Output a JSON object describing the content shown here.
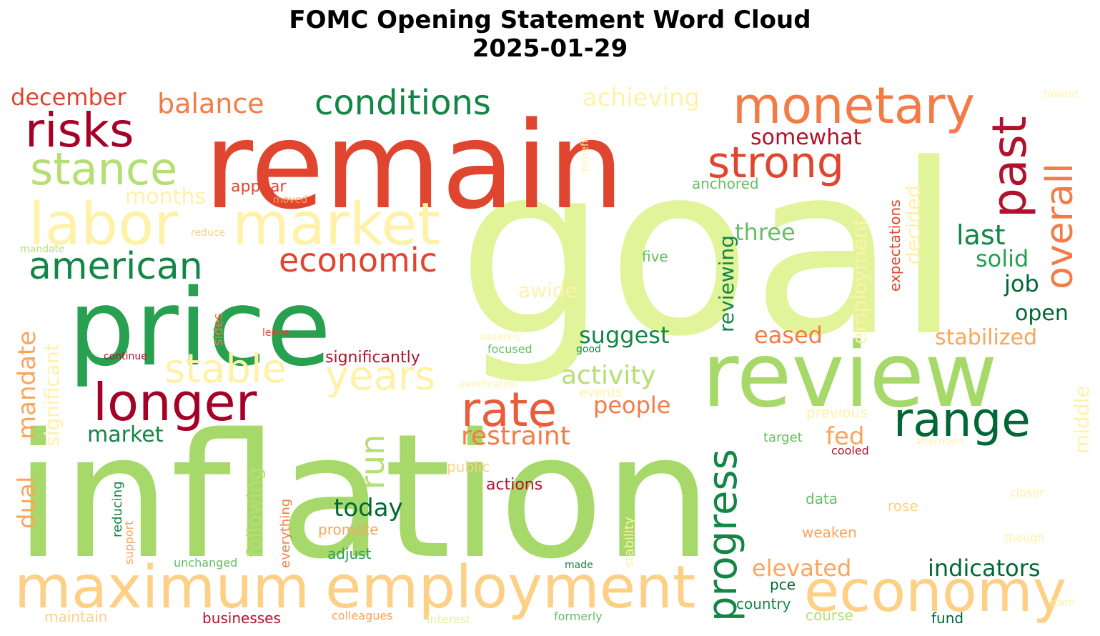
{
  "figure": {
    "title_line1": "FOMC Opening Statement Word Cloud",
    "title_line2": "2025-01-29"
  },
  "palette": {
    "dark_red": "#a50026",
    "crimson": "#b2112b",
    "red": "#e0452f",
    "orange_red": "#ea5c3a",
    "orange": "#f47b45",
    "light_orange": "#fba45c",
    "peach": "#fdd085",
    "pale_yellow": "#fff2a8",
    "pale_lime": "#e1f49a",
    "lime": "#b4df72",
    "light_green": "#a7d96a",
    "green": "#66bd63",
    "mid_green": "#27a050",
    "dark_green": "#138545",
    "deep_green": "#006837"
  },
  "words": [
    {
      "text": "goal",
      "color": "#e1f49a",
      "size": 330,
      "rotate": 0
    },
    {
      "text": "inflation",
      "color": "#a7d96a",
      "size": 240,
      "rotate": 0
    },
    {
      "text": "remain",
      "color": "#e0452f",
      "size": 168,
      "rotate": 0
    },
    {
      "text": "price",
      "color": "#27a050",
      "size": 148,
      "rotate": 0
    },
    {
      "text": "review",
      "color": "#a7d96a",
      "size": 125,
      "rotate": 0
    },
    {
      "text": "economy",
      "color": "#fdd085",
      "size": 80,
      "rotate": 0
    },
    {
      "text": "maximum",
      "color": "#fdd085",
      "size": 82,
      "rotate": 0
    },
    {
      "text": "employment",
      "color": "#fdd085",
      "size": 82,
      "rotate": 0
    },
    {
      "text": "labor",
      "color": "#fff2a8",
      "size": 82,
      "rotate": 0
    },
    {
      "text": "market",
      "color": "#fff2a8",
      "size": 82,
      "rotate": 0
    },
    {
      "text": "monetary",
      "color": "#f47b45",
      "size": 70,
      "rotate": 0
    },
    {
      "text": "risks",
      "color": "#a50026",
      "size": 66,
      "rotate": 0
    },
    {
      "text": "stance",
      "color": "#b4df72",
      "size": 62,
      "rotate": 0
    },
    {
      "text": "longer",
      "color": "#a50026",
      "size": 72,
      "rotate": 0
    },
    {
      "text": "strong",
      "color": "#e0452f",
      "size": 60,
      "rotate": 0
    },
    {
      "text": "conditions",
      "color": "#138545",
      "size": 48,
      "rotate": 0
    },
    {
      "text": "american",
      "color": "#138545",
      "size": 52,
      "rotate": 0
    },
    {
      "text": "rate",
      "color": "#ea5c3a",
      "size": 66,
      "rotate": 0
    },
    {
      "text": "range",
      "color": "#006837",
      "size": 66,
      "rotate": 0
    },
    {
      "text": "past",
      "color": "#b2112b",
      "size": 66,
      "rotate": -90
    },
    {
      "text": "overall",
      "color": "#f47b45",
      "size": 52,
      "rotate": -90
    },
    {
      "text": "progress",
      "color": "#138545",
      "size": 56,
      "rotate": -90
    },
    {
      "text": "stable",
      "color": "#fff2a8",
      "size": 56,
      "rotate": 0
    },
    {
      "text": "years",
      "color": "#fff2a8",
      "size": 56,
      "rotate": 0
    },
    {
      "text": "economic",
      "color": "#e0452f",
      "size": 46,
      "rotate": 0
    },
    {
      "text": "balance",
      "color": "#f47b45",
      "size": 38,
      "rotate": 0
    },
    {
      "text": "december",
      "color": "#e0452f",
      "size": 32,
      "rotate": 0
    },
    {
      "text": "achieving",
      "color": "#fff2a8",
      "size": 34,
      "rotate": 0
    },
    {
      "text": "somewhat",
      "color": "#b2112b",
      "size": 30,
      "rotate": 0
    },
    {
      "text": "months",
      "color": "#fff2a8",
      "size": 30,
      "rotate": 0
    },
    {
      "text": "appear",
      "color": "#e0452f",
      "size": 22,
      "rotate": 0
    },
    {
      "text": "anchored",
      "color": "#66bd63",
      "size": 20,
      "rotate": 0
    },
    {
      "text": "three",
      "color": "#66bd63",
      "size": 32,
      "rotate": 0
    },
    {
      "text": "last",
      "color": "#138545",
      "size": 38,
      "rotate": 0
    },
    {
      "text": "solid",
      "color": "#27a050",
      "size": 32,
      "rotate": 0
    },
    {
      "text": "job",
      "color": "#006837",
      "size": 32,
      "rotate": 0
    },
    {
      "text": "open",
      "color": "#006837",
      "size": 30,
      "rotate": 0
    },
    {
      "text": "stabilized",
      "color": "#fba45c",
      "size": 30,
      "rotate": 0
    },
    {
      "text": "eased",
      "color": "#f47b45",
      "size": 32,
      "rotate": 0
    },
    {
      "text": "suggest",
      "color": "#138545",
      "size": 32,
      "rotate": 0
    },
    {
      "text": "activity",
      "color": "#b4df72",
      "size": 36,
      "rotate": 0
    },
    {
      "text": "awide",
      "color": "#fff2a8",
      "size": 28,
      "rotate": 0
    },
    {
      "text": "significantly",
      "color": "#b2112b",
      "size": 22,
      "rotate": 0
    },
    {
      "text": "people",
      "color": "#f47b45",
      "size": 32,
      "rotate": 0
    },
    {
      "text": "restraint",
      "color": "#f47b45",
      "size": 36,
      "rotate": 0
    },
    {
      "text": "fed",
      "color": "#fba45c",
      "size": 34,
      "rotate": 0
    },
    {
      "text": "market",
      "color": "#138545",
      "size": 30,
      "rotate": 0
    },
    {
      "text": "today",
      "color": "#006837",
      "size": 34,
      "rotate": 0
    },
    {
      "text": "run",
      "color": "#b4df72",
      "size": 46,
      "rotate": -90
    },
    {
      "text": "indicators",
      "color": "#006837",
      "size": 32,
      "rotate": 0
    },
    {
      "text": "elevated",
      "color": "#fba45c",
      "size": 32,
      "rotate": 0
    },
    {
      "text": "dual",
      "color": "#fba45c",
      "size": 34,
      "rotate": -90
    },
    {
      "text": "mandate",
      "color": "#fba45c",
      "size": 34,
      "rotate": -90
    },
    {
      "text": "significant",
      "color": "#fff2a8",
      "size": 28,
      "rotate": -90
    },
    {
      "text": "following",
      "color": "#b4df72",
      "size": 28,
      "rotate": -90
    },
    {
      "text": "reviewing",
      "color": "#138545",
      "size": 28,
      "rotate": -90
    },
    {
      "text": "employment",
      "color": "#fff2a8",
      "size": 28,
      "rotate": -90
    },
    {
      "text": "decided",
      "color": "#fff2a8",
      "size": 28,
      "rotate": -90
    },
    {
      "text": "expectations",
      "color": "#e0452f",
      "size": 20,
      "rotate": -90
    },
    {
      "text": "middle",
      "color": "#fff2a8",
      "size": 28,
      "rotate": -90
    },
    {
      "text": "everything",
      "color": "#f47b45",
      "size": 18,
      "rotate": -90
    },
    {
      "text": "reducing",
      "color": "#138545",
      "size": 18,
      "rotate": -90
    },
    {
      "text": "support",
      "color": "#fba45c",
      "size": 16,
      "rotate": -90
    },
    {
      "text": "sides",
      "color": "#f47b45",
      "size": 18,
      "rotate": -90
    },
    {
      "text": "stability",
      "color": "#fff2a8",
      "size": 18,
      "rotate": -90
    },
    {
      "text": "benefit",
      "color": "#fff2a8",
      "size": 14,
      "rotate": -90
    },
    {
      "text": "five",
      "color": "#66bd63",
      "size": 20,
      "rotate": 0
    },
    {
      "text": "moved",
      "color": "#fba45c",
      "size": 14,
      "rotate": 0
    },
    {
      "text": "reduce",
      "color": "#fdd085",
      "size": 14,
      "rotate": 0
    },
    {
      "text": "mandate",
      "color": "#b4df72",
      "size": 14,
      "rotate": 0
    },
    {
      "text": "leave",
      "color": "#e0452f",
      "size": 14,
      "rotate": 0
    },
    {
      "text": "continue",
      "color": "#b2112b",
      "size": 14,
      "rotate": 0
    },
    {
      "text": "squarely",
      "color": "#fff2a8",
      "size": 14,
      "rotate": 0
    },
    {
      "text": "focused",
      "color": "#66bd63",
      "size": 16,
      "rotate": 0
    },
    {
      "text": "good",
      "color": "#138545",
      "size": 14,
      "rotate": 0
    },
    {
      "text": "overheated",
      "color": "#fff2a8",
      "size": 14,
      "rotate": 0
    },
    {
      "text": "events",
      "color": "#fff2a8",
      "size": 18,
      "rotate": 0
    },
    {
      "text": "previous",
      "color": "#fff2a8",
      "size": 20,
      "rotate": 0
    },
    {
      "text": "target",
      "color": "#66bd63",
      "size": 18,
      "rotate": 0
    },
    {
      "text": "cooled",
      "color": "#b2112b",
      "size": 16,
      "rotate": 0
    },
    {
      "text": "afternoon",
      "color": "#fff2a8",
      "size": 14,
      "rotate": 0
    },
    {
      "text": "public",
      "color": "#fdd085",
      "size": 20,
      "rotate": 0
    },
    {
      "text": "actions",
      "color": "#b2112b",
      "size": 22,
      "rotate": 0
    },
    {
      "text": "data",
      "color": "#66bd63",
      "size": 20,
      "rotate": 0
    },
    {
      "text": "rose",
      "color": "#fdd085",
      "size": 20,
      "rotate": 0
    },
    {
      "text": "closer",
      "color": "#fff2a8",
      "size": 16,
      "rotate": 0
    },
    {
      "text": "promote",
      "color": "#fba45c",
      "size": 20,
      "rotate": 0
    },
    {
      "text": "weaken",
      "color": "#fba45c",
      "size": 20,
      "rotate": 0
    },
    {
      "text": "though",
      "color": "#fff2a8",
      "size": 16,
      "rotate": 0
    },
    {
      "text": "adjust",
      "color": "#27a050",
      "size": 20,
      "rotate": 0
    },
    {
      "text": "unchanged",
      "color": "#66bd63",
      "size": 16,
      "rotate": 0
    },
    {
      "text": "made",
      "color": "#138545",
      "size": 14,
      "rotate": 0
    },
    {
      "text": "pce",
      "color": "#006837",
      "size": 20,
      "rotate": 0
    },
    {
      "text": "country",
      "color": "#138545",
      "size": 20,
      "rotate": 0
    },
    {
      "text": "state",
      "color": "#fff2a8",
      "size": 14,
      "rotate": 0
    },
    {
      "text": "maintain",
      "color": "#fdd085",
      "size": 20,
      "rotate": 0
    },
    {
      "text": "businesses",
      "color": "#b2112b",
      "size": 20,
      "rotate": 0
    },
    {
      "text": "colleagues",
      "color": "#fba45c",
      "size": 16,
      "rotate": 0
    },
    {
      "text": "interest",
      "color": "#e1f49a",
      "size": 16,
      "rotate": 0
    },
    {
      "text": "formerly",
      "color": "#66bd63",
      "size": 16,
      "rotate": 0
    },
    {
      "text": "course",
      "color": "#b4df72",
      "size": 20,
      "rotate": 0
    },
    {
      "text": "fund",
      "color": "#006837",
      "size": 20,
      "rotate": 0
    },
    {
      "text": "toward",
      "color": "#fff2a8",
      "size": 14,
      "rotate": 0
    }
  ]
}
